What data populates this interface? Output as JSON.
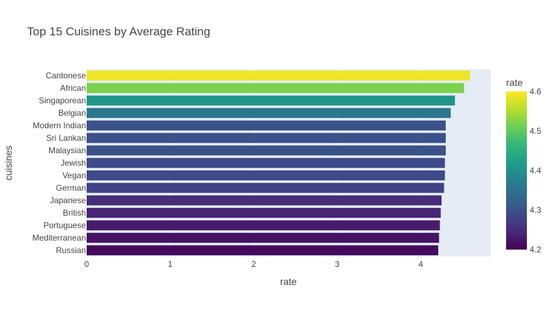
{
  "chart_data": {
    "type": "bar",
    "orientation": "horizontal",
    "title": "Top 15 Cuisines by Average Rating",
    "xlabel": "rate",
    "ylabel": "cuisines",
    "xlim": [
      0,
      4.84
    ],
    "x_ticks": [
      "0",
      "1",
      "2",
      "3",
      "4"
    ],
    "categories": [
      "Cantonese",
      "African",
      "Singaporean",
      "Belgian",
      "Modern Indian",
      "Sri Lankan",
      "Malaysian",
      "Jewish",
      "Vegan",
      "German",
      "Japanese",
      "British",
      "Portuguese",
      "Mediterranean",
      "Russian"
    ],
    "values": [
      4.59,
      4.52,
      4.41,
      4.36,
      4.3,
      4.3,
      4.3,
      4.29,
      4.29,
      4.28,
      4.25,
      4.24,
      4.23,
      4.22,
      4.21
    ],
    "grid": true,
    "plot_background": "#e5ecf6",
    "colorbar": {
      "title": "rate",
      "colorscale": "Viridis",
      "range": [
        4.2,
        4.6
      ],
      "ticks": [
        "4.2",
        "4.3",
        "4.4",
        "4.5",
        "4.6"
      ]
    }
  }
}
